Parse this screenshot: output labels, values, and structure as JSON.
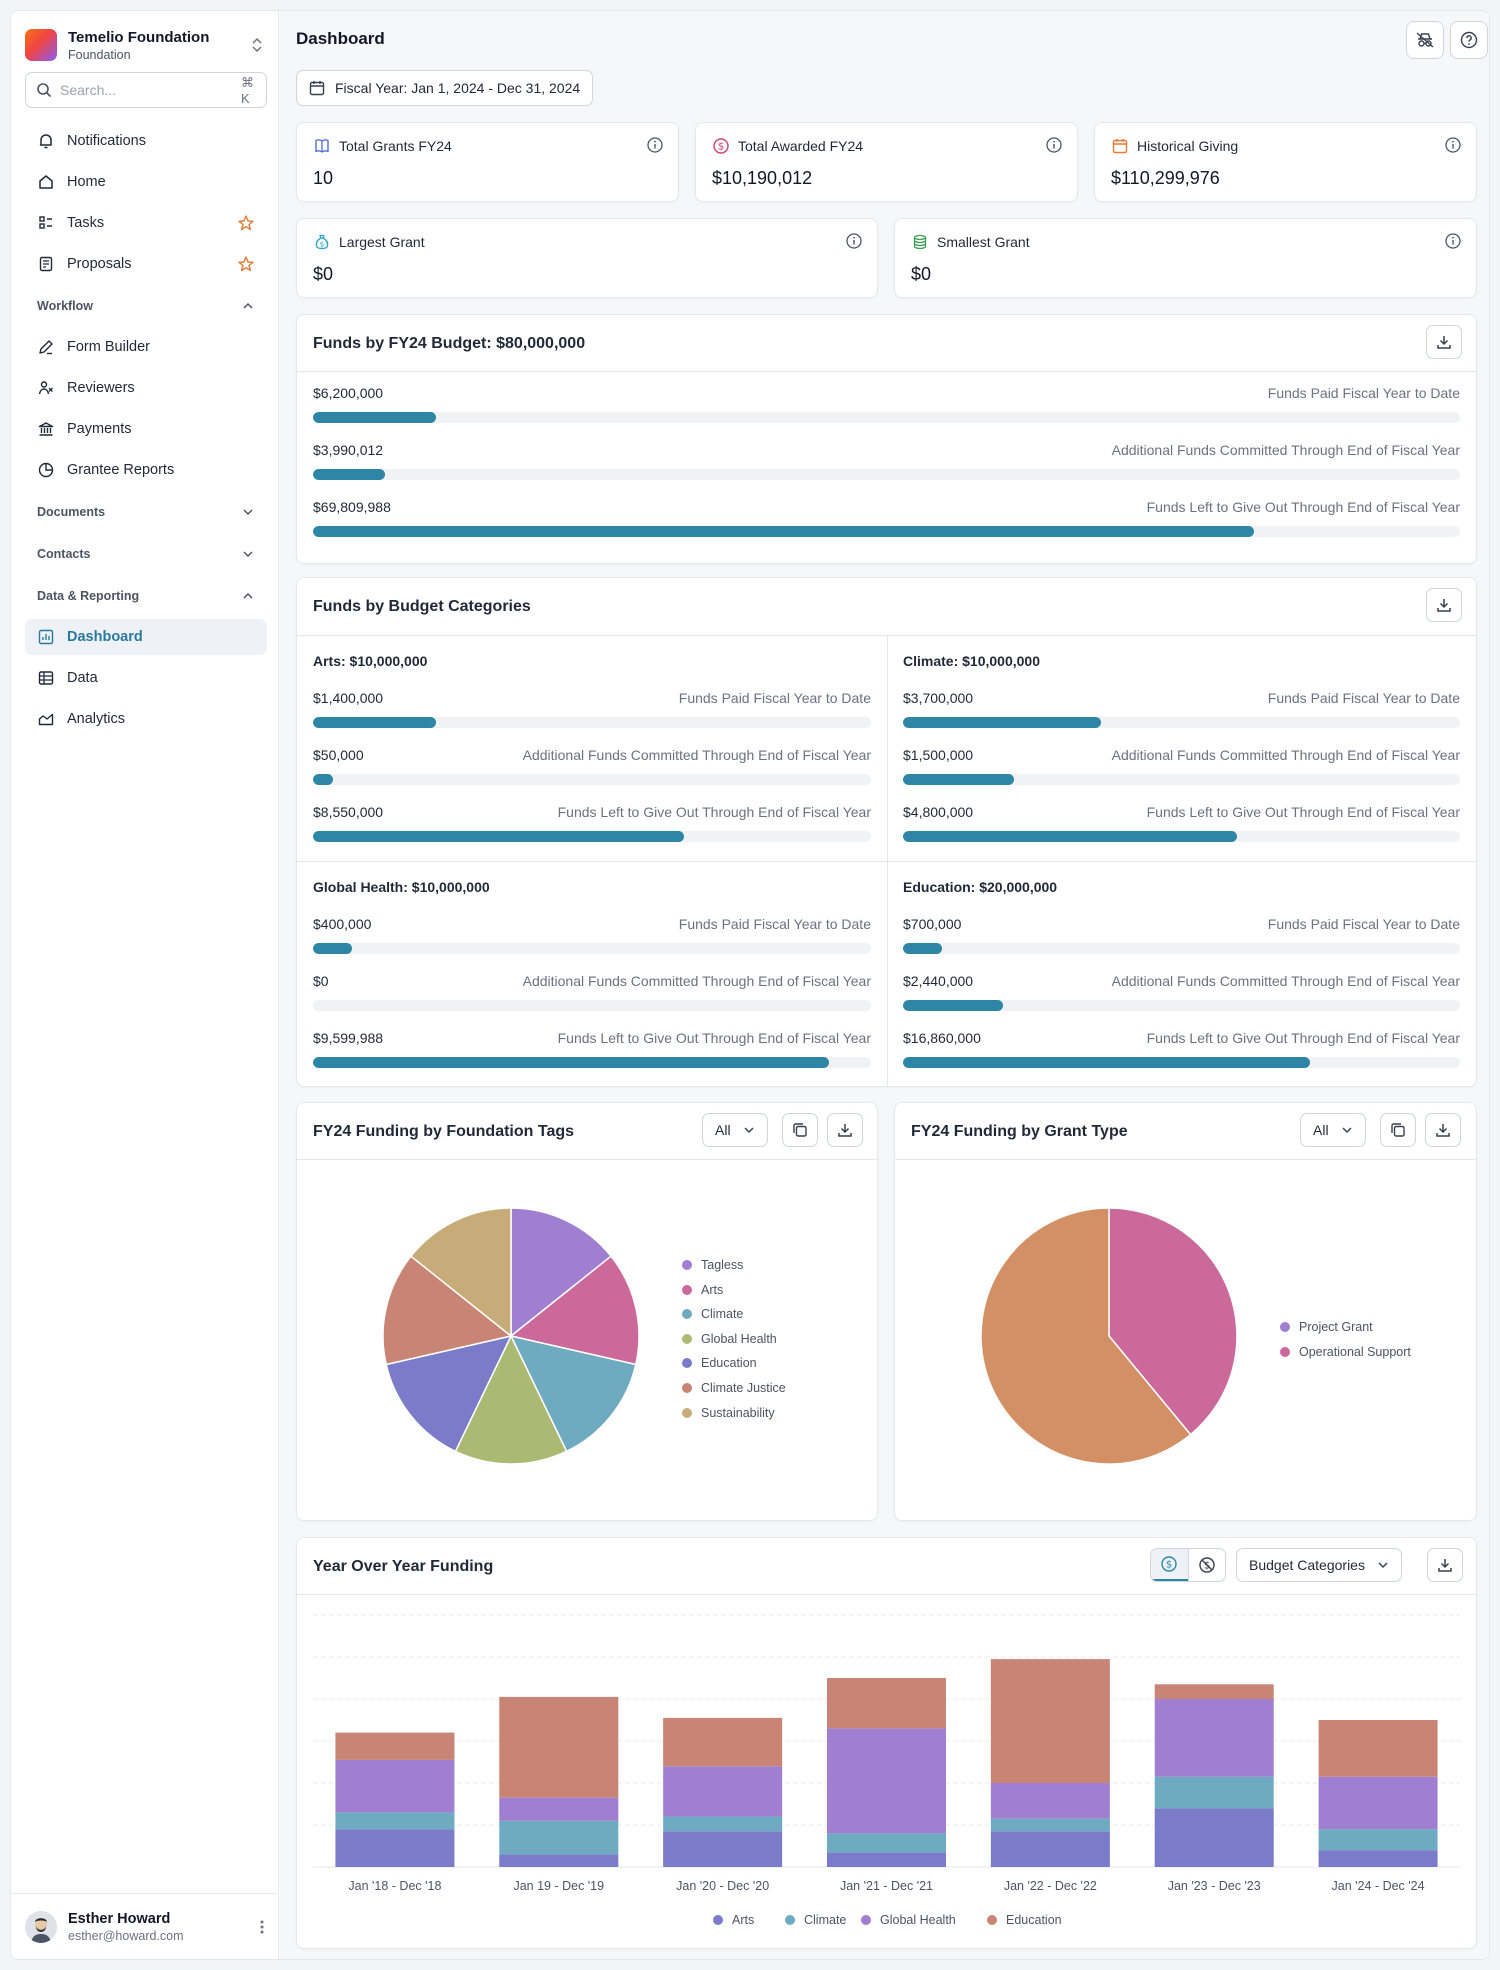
{
  "org": {
    "name": "Temelio Foundation",
    "type": "Foundation"
  },
  "search": {
    "placeholder": "Search...",
    "shortcut": "⌘ K"
  },
  "nav": {
    "top": [
      {
        "label": "Notifications",
        "icon": "bell-icon"
      },
      {
        "label": "Home",
        "icon": "home-icon"
      },
      {
        "label": "Tasks",
        "icon": "tasks-icon",
        "starred": true
      },
      {
        "label": "Proposals",
        "icon": "proposals-icon",
        "starred": true
      }
    ],
    "workflow": {
      "title": "Workflow",
      "items": [
        "Form Builder",
        "Reviewers",
        "Payments",
        "Grantee Reports"
      ]
    },
    "documents": {
      "title": "Documents"
    },
    "contacts": {
      "title": "Contacts"
    },
    "reporting": {
      "title": "Data & Reporting",
      "items": [
        "Dashboard",
        "Data",
        "Analytics"
      ]
    }
  },
  "user": {
    "name": "Esther Howard",
    "email": "esther@howard.com"
  },
  "page": {
    "title": "Dashboard",
    "fiscal_year": "Fiscal Year: Jan 1, 2024 - Dec 31, 2024"
  },
  "stats": [
    {
      "label": "Total Grants FY24",
      "value": "10",
      "icon": "book-icon",
      "color": "#4f6bd8"
    },
    {
      "label": "Total Awarded FY24",
      "value": "$10,190,012",
      "icon": "dollar-circle-icon",
      "color": "#d0406f"
    },
    {
      "label": "Historical Giving",
      "value": "$110,299,976",
      "icon": "calendar-icon",
      "color": "#e27b35"
    },
    {
      "label": "Largest Grant",
      "value": "$0",
      "icon": "money-bag-icon",
      "color": "#2fa6c8"
    },
    {
      "label": "Smallest Grant",
      "value": "$0",
      "icon": "coins-icon",
      "color": "#3aa055"
    }
  ],
  "budget": {
    "title": "Funds by FY24 Budget: $80,000,000",
    "rows": [
      {
        "amount": "$6,200,000",
        "label": "Funds Paid Fiscal Year to Date",
        "fraction": 0.1075
      },
      {
        "amount": "$3,990,012",
        "label": "Additional Funds Committed Through End of Fiscal Year",
        "fraction": 0.063
      },
      {
        "amount": "$69,809,988",
        "label": "Funds Left to Give Out Through End of Fiscal Year",
        "fraction": 0.82
      }
    ]
  },
  "categories": {
    "title": "Funds by Budget Categories",
    "items": [
      {
        "title": "Arts: $10,000,000",
        "rows": [
          {
            "amount": "$1,400,000",
            "label": "Funds Paid Fiscal Year to Date",
            "fraction": 0.22
          },
          {
            "amount": "$50,000",
            "label": "Additional Funds Committed Through End of Fiscal Year",
            "fraction": 0.035
          },
          {
            "amount": "$8,550,000",
            "label": "Funds Left to Give Out Through End of Fiscal Year",
            "fraction": 0.665
          }
        ]
      },
      {
        "title": "Climate: $10,000,000",
        "rows": [
          {
            "amount": "$3,700,000",
            "label": "Funds Paid Fiscal Year to Date",
            "fraction": 0.355
          },
          {
            "amount": "$1,500,000",
            "label": "Additional Funds Committed Through End of Fiscal Year",
            "fraction": 0.2
          },
          {
            "amount": "$4,800,000",
            "label": "Funds Left to Give Out Through End of Fiscal Year",
            "fraction": 0.6
          }
        ]
      },
      {
        "title": "Global Health: $10,000,000",
        "rows": [
          {
            "amount": "$400,000",
            "label": "Funds Paid Fiscal Year to Date",
            "fraction": 0.07
          },
          {
            "amount": "$0",
            "label": "Additional Funds Committed Through End of Fiscal Year",
            "fraction": 0
          },
          {
            "amount": "$9,599,988",
            "label": "Funds Left to Give Out Through End of Fiscal Year",
            "fraction": 0.925
          }
        ]
      },
      {
        "title": "Education: $20,000,000",
        "rows": [
          {
            "amount": "$700,000",
            "label": "Funds Paid Fiscal Year to Date",
            "fraction": 0.07
          },
          {
            "amount": "$2,440,000",
            "label": "Additional Funds Committed Through End of Fiscal Year",
            "fraction": 0.18
          },
          {
            "amount": "$16,860,000",
            "label": "Funds Left to Give Out Through End of Fiscal Year",
            "fraction": 0.73
          }
        ]
      }
    ]
  },
  "tags_chart": {
    "title": "FY24 Funding by Foundation Tags",
    "filter": "All"
  },
  "grant_type_chart": {
    "title": "FY24 Funding by Grant Type",
    "filter": "All"
  },
  "yoy": {
    "title": "Year Over Year Funding",
    "group_by": "Budget Categories"
  },
  "chart_data": [
    {
      "type": "pie",
      "title": "FY24 Funding by Foundation Tags",
      "labels": [
        "Tagless",
        "Arts",
        "Climate",
        "Global Health",
        "Education",
        "Climate Justice",
        "Sustainability"
      ],
      "values": [
        14.29,
        14.29,
        14.29,
        14.29,
        14.29,
        14.29,
        14.29
      ],
      "colors": [
        "#a07fd0",
        "#cc699b",
        "#6fabc0",
        "#abb973",
        "#7a7bc9",
        "#c88575",
        "#c7ac7a"
      ],
      "legend": "right"
    },
    {
      "type": "pie",
      "title": "FY24 Funding by Grant Type",
      "labels": [
        "Project Grant",
        "Operational Support"
      ],
      "values": [
        0,
        100
      ],
      "slices": [
        {
          "label": "Operational Support",
          "value": 39,
          "color": "#cc699b"
        },
        {
          "label": "Operational Support",
          "value": 61,
          "color": "#d39065"
        }
      ],
      "colors": [
        "#a07fd0",
        "#cc699b"
      ],
      "legend": "right"
    },
    {
      "type": "bar",
      "stacked": true,
      "title": "Year Over Year Funding",
      "categories": [
        "Jan '18 - Dec '18",
        "Jan 19 - Dec '19",
        "Jan '20 - Dec '20",
        "Jan '21 - Dec '21",
        "Jan '22 - Dec '22",
        "Jan '23 - Dec '23",
        "Jan '24 - Dec '24"
      ],
      "series": [
        {
          "name": "Arts",
          "color": "#7a7bc9",
          "values": [
            9,
            3,
            8.5,
            3.5,
            8.5,
            14,
            4
          ]
        },
        {
          "name": "Climate",
          "color": "#6fabc0",
          "values": [
            4,
            8,
            3.5,
            4.5,
            3,
            7.5,
            5
          ]
        },
        {
          "name": "Global Health",
          "color": "#a07fd0",
          "values": [
            12.5,
            5.5,
            12,
            25,
            8.5,
            18.5,
            12.5
          ]
        },
        {
          "name": "Education",
          "color": "#c88575",
          "values": [
            6.5,
            24,
            11.5,
            12,
            29.5,
            3.5,
            13.5
          ]
        }
      ],
      "ylim": [
        0,
        60
      ],
      "grid": true,
      "legend": "bottom"
    }
  ]
}
